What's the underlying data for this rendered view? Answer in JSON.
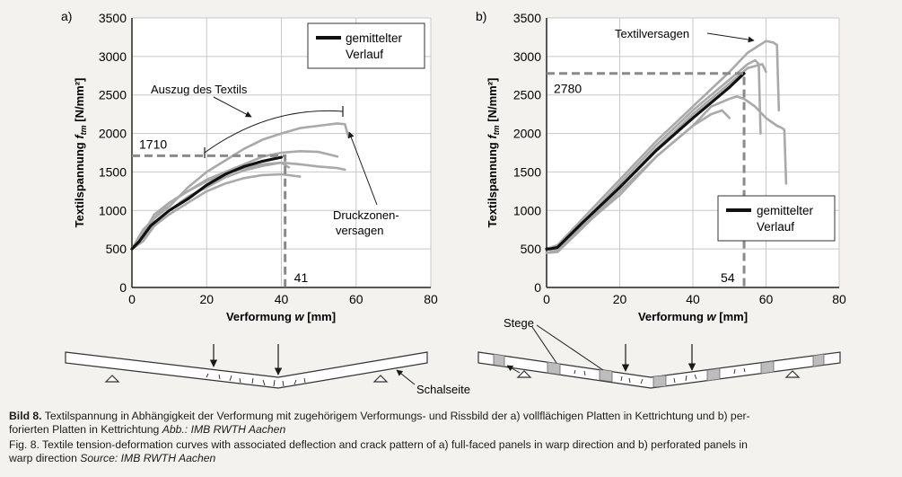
{
  "chart_data": [
    {
      "type": "line",
      "panel_label": "a)",
      "xlabel": "Verformung w [mm]",
      "ylabel": "Textilspannung f_tm [N/mm²]",
      "xlim": [
        0,
        80
      ],
      "ylim": [
        0,
        3500
      ],
      "xticks": [
        "0",
        "20",
        "40",
        "60",
        "80"
      ],
      "yticks": [
        "0",
        "500",
        "1000",
        "1500",
        "2000",
        "2500",
        "3000",
        "3500"
      ],
      "grid": true,
      "legend": {
        "placement": "top-right",
        "entries": [
          "gemittelter",
          "Verlauf"
        ]
      },
      "series": [
        {
          "name": "gemittelter Verlauf",
          "style": "mean",
          "x": [
            0,
            2,
            5,
            10,
            15,
            20,
            25,
            30,
            35,
            40
          ],
          "y": [
            500,
            600,
            800,
            1000,
            1150,
            1330,
            1470,
            1570,
            1640,
            1690
          ]
        },
        {
          "style": "specimen",
          "x": [
            0,
            3,
            6,
            10,
            15,
            20,
            25,
            30,
            35,
            40,
            45,
            50,
            55,
            57,
            58
          ],
          "y": [
            500,
            750,
            900,
            1050,
            1300,
            1500,
            1650,
            1800,
            1920,
            2000,
            2070,
            2100,
            2130,
            2120,
            1950
          ]
        },
        {
          "style": "specimen",
          "x": [
            0,
            3,
            6,
            10,
            15,
            20,
            25,
            30,
            35,
            40,
            45,
            50,
            55
          ],
          "y": [
            500,
            700,
            950,
            1100,
            1250,
            1400,
            1500,
            1600,
            1700,
            1750,
            1770,
            1760,
            1700
          ]
        },
        {
          "style": "specimen",
          "x": [
            0,
            3,
            6,
            10,
            15,
            20,
            25,
            30,
            35,
            40,
            45,
            50,
            55,
            57
          ],
          "y": [
            500,
            650,
            850,
            1000,
            1180,
            1300,
            1430,
            1520,
            1580,
            1620,
            1600,
            1570,
            1550,
            1530
          ]
        },
        {
          "style": "specimen",
          "x": [
            0,
            3,
            6,
            10,
            15,
            20,
            25,
            30,
            35,
            40,
            45
          ],
          "y": [
            500,
            600,
            800,
            950,
            1100,
            1250,
            1350,
            1420,
            1460,
            1470,
            1440
          ]
        },
        {
          "style": "specimen",
          "x": [
            0,
            3,
            6,
            10,
            15,
            20,
            25,
            30,
            35,
            40,
            42
          ],
          "y": [
            500,
            700,
            900,
            1100,
            1250,
            1380,
            1480,
            1550,
            1600,
            1620,
            1560
          ]
        }
      ],
      "marker": {
        "x": 41,
        "y": 1710,
        "x_label": "41",
        "y_label": "1710"
      },
      "annotations": [
        "Auszug des Textils",
        "Druckzonen-",
        "versagen"
      ]
    },
    {
      "type": "line",
      "panel_label": "b)",
      "xlabel": "Verformung w [mm]",
      "ylabel": "Textilspannung f_tm [N/mm²]",
      "xlim": [
        0,
        80
      ],
      "ylim": [
        0,
        3500
      ],
      "xticks": [
        "0",
        "20",
        "40",
        "60",
        "80"
      ],
      "yticks": [
        "0",
        "500",
        "1000",
        "1500",
        "2000",
        "2500",
        "3000",
        "3500"
      ],
      "grid": true,
      "legend": {
        "placement": "bottom-right",
        "entries": [
          "gemittelter",
          "Verlauf"
        ]
      },
      "series": [
        {
          "name": "gemittelter Verlauf",
          "style": "mean",
          "x": [
            0,
            1,
            3,
            10,
            20,
            30,
            40,
            50,
            54
          ],
          "y": [
            500,
            500,
            520,
            850,
            1300,
            1780,
            2200,
            2600,
            2780
          ]
        },
        {
          "style": "specimen",
          "x": [
            0,
            3,
            10,
            20,
            30,
            40,
            50,
            55,
            60,
            62,
            63,
            63.5
          ],
          "y": [
            500,
            550,
            900,
            1400,
            1900,
            2350,
            2800,
            3050,
            3200,
            3180,
            3150,
            2300
          ]
        },
        {
          "style": "specimen",
          "x": [
            0,
            3,
            10,
            20,
            30,
            40,
            50,
            55,
            57,
            58,
            58.5
          ],
          "y": [
            500,
            520,
            850,
            1350,
            1850,
            2300,
            2700,
            2900,
            2950,
            2900,
            2000
          ]
        },
        {
          "style": "specimen",
          "x": [
            0,
            3,
            10,
            20,
            30,
            40,
            50,
            55,
            59,
            60
          ],
          "y": [
            450,
            480,
            800,
            1300,
            1800,
            2250,
            2650,
            2850,
            2900,
            2800
          ]
        },
        {
          "style": "specimen",
          "x": [
            0,
            3,
            10,
            20,
            30,
            40,
            45,
            50,
            52,
            54,
            57,
            60,
            63,
            64,
            65,
            65.5
          ],
          "y": [
            500,
            500,
            800,
            1200,
            1700,
            2100,
            2350,
            2450,
            2480,
            2450,
            2350,
            2200,
            2100,
            2080,
            2050,
            1350
          ]
        },
        {
          "style": "specimen",
          "x": [
            0,
            3,
            10,
            20,
            30,
            40,
            45,
            48,
            50
          ],
          "y": [
            450,
            460,
            780,
            1250,
            1700,
            2100,
            2250,
            2300,
            2200
          ]
        }
      ],
      "marker": {
        "x": 54,
        "y": 2780,
        "x_label": "54",
        "y_label": "2780"
      },
      "annotations": [
        "Textilversagen",
        "Stege",
        "Schalseite"
      ]
    }
  ],
  "caption": {
    "de_label": "Bild 8.",
    "de_text_1": "Textilspannung in Abhängigkeit der Verformung mit zugehörigem Verformungs- und Rissbild der a) vollflächigen Platten in Kettrichtung und b) per-",
    "de_text_2": "forierten Platten in Kettrichtung",
    "de_source": "Abb.: IMB RWTH Aachen",
    "en_label": "Fig. 8.",
    "en_text_1": "Textile tension-deformation curves with associated deflection and crack pattern of a) full-faced panels in warp direction and b) perforated panels in",
    "en_text_2": "warp direction",
    "en_source": "Source: IMB RWTH Aachen"
  }
}
